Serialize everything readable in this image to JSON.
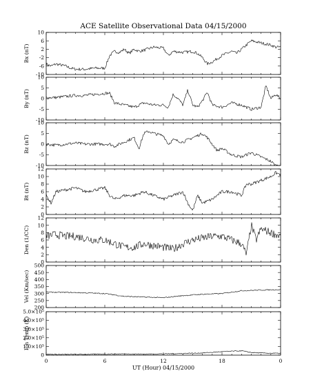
{
  "chart_data": {
    "type": "line",
    "title": "ACE Satellite Observational Data   04/15/2000",
    "xlabel": "UT (Hour)   04/15/2000",
    "x_ticks": [
      "0",
      "6",
      "12",
      "18",
      "0"
    ],
    "xlim": [
      0,
      24
    ],
    "grid": false,
    "panels": [
      {
        "ylabel": "Bx (nT)",
        "ylim": [
          -10,
          10
        ],
        "yticks": [
          -10,
          -6,
          -2,
          2,
          6,
          10
        ],
        "ytick_labels": [
          "-10",
          "-6",
          "-2",
          "2",
          "6",
          "10"
        ],
        "x": [
          0,
          0.5,
          1,
          1.5,
          2,
          2.5,
          3,
          4,
          5,
          6,
          6.5,
          7,
          7.5,
          8,
          8.5,
          9,
          9.5,
          10,
          11,
          12,
          12.5,
          13,
          14,
          15,
          15.5,
          16,
          16.5,
          17,
          18,
          19,
          19.5,
          20,
          20.5,
          21,
          22,
          22.5,
          23,
          23.5,
          24
        ],
        "values": [
          -5,
          -6,
          -5,
          -5.5,
          -6,
          -7,
          -7.5,
          -7.5,
          -7,
          -7,
          -1,
          1,
          0.5,
          2,
          0,
          2,
          1,
          1.5,
          3,
          2.5,
          -1,
          1,
          0.5,
          1,
          0,
          -2,
          -5,
          -4,
          -1,
          1,
          0,
          2,
          4,
          6,
          5,
          4.5,
          4,
          3,
          3
        ]
      },
      {
        "ylabel": "By (nT)",
        "ylim": [
          -10,
          10
        ],
        "yticks": [
          -10,
          -5,
          0,
          5,
          10
        ],
        "ytick_labels": [
          "-10",
          "-5",
          "0",
          "5",
          "10"
        ],
        "x": [
          0,
          1,
          2,
          3,
          4,
          5,
          6,
          6.5,
          7,
          8,
          9,
          10,
          11,
          12,
          12.5,
          13,
          13.5,
          14,
          14.5,
          15,
          15.5,
          16,
          16.5,
          17,
          18,
          19,
          20,
          21,
          22,
          22.5,
          23,
          23.5,
          24
        ],
        "values": [
          0.5,
          0.5,
          1,
          1.5,
          1.5,
          2,
          2.5,
          2.5,
          -2,
          -3,
          -4,
          -2,
          -3,
          -3,
          -4,
          2,
          0,
          -3,
          4,
          -3,
          -4,
          -1,
          3,
          -3,
          -4,
          -2,
          -3,
          -5,
          -4,
          6,
          0,
          2,
          0
        ]
      },
      {
        "ylabel": "Bz (nT)",
        "ylim": [
          -10,
          10
        ],
        "yticks": [
          -10,
          -5,
          0,
          5,
          10
        ],
        "ytick_labels": [
          "-10",
          "-5",
          "0",
          "5",
          "10"
        ],
        "x": [
          0,
          1,
          2,
          3,
          4,
          5,
          6,
          6.5,
          7,
          8,
          9,
          9.5,
          10,
          10.5,
          11,
          12,
          12.5,
          13,
          14,
          15,
          16,
          16.5,
          17,
          17.5,
          18,
          19,
          20,
          21,
          22,
          23,
          23.5,
          24
        ],
        "values": [
          0,
          -0.5,
          0,
          0.5,
          0,
          0,
          0,
          0,
          -1,
          1,
          3,
          -2,
          5,
          6,
          5,
          4,
          0,
          2,
          1,
          3,
          5,
          3,
          0,
          -3,
          -2,
          -5,
          -6,
          -4,
          -6,
          -8,
          -10,
          -10
        ]
      },
      {
        "ylabel": "Bt (nT)",
        "ylim": [
          0,
          12
        ],
        "yticks": [
          0,
          2,
          4,
          6,
          8,
          10,
          12
        ],
        "ytick_labels": [
          "0",
          "2",
          "4",
          "6",
          "8",
          "10",
          "12"
        ],
        "x": [
          0,
          0.5,
          1,
          2,
          3,
          4,
          5,
          6,
          6.5,
          7,
          8,
          9,
          10,
          11,
          12,
          13,
          14,
          14.5,
          15,
          15.5,
          16,
          17,
          18,
          19,
          20,
          20.5,
          21,
          22,
          23,
          23.5,
          24
        ],
        "values": [
          5,
          3,
          6,
          6.5,
          7,
          6,
          6.5,
          7,
          5,
          4,
          5,
          5,
          6,
          5,
          4,
          5,
          6,
          3,
          1,
          5,
          3,
          4,
          6,
          6,
          5,
          8,
          8,
          9,
          10,
          11,
          10.5
        ]
      },
      {
        "ylabel": "Den (1/CC)",
        "ylim": [
          0,
          12
        ],
        "yticks": [
          0,
          2,
          4,
          6,
          8,
          10,
          12
        ],
        "ytick_labels": [
          "0",
          "2",
          "4",
          "6",
          "8",
          "10",
          "12"
        ],
        "x": [
          0,
          1,
          2,
          3,
          4,
          5,
          6,
          7,
          8,
          9,
          10,
          11,
          12,
          13,
          14,
          15,
          16,
          17,
          18,
          19,
          20,
          20.5,
          21,
          21.5,
          22,
          23,
          24
        ],
        "values": [
          7,
          7.5,
          7,
          7,
          6.5,
          6,
          6,
          5,
          4,
          4,
          5,
          4.5,
          4,
          3.5,
          5,
          6,
          6.5,
          7,
          7,
          6,
          5,
          2,
          10,
          6,
          9,
          8,
          7
        ]
      },
      {
        "ylabel": "Vel (Km/sec)",
        "ylim": [
          200,
          500
        ],
        "yticks": [
          200,
          250,
          300,
          350,
          400,
          450,
          500
        ],
        "ytick_labels": [
          "200",
          "250",
          "300",
          "350",
          "400",
          "450",
          "500"
        ],
        "x": [
          0,
          2,
          4,
          6,
          8,
          10,
          12,
          14,
          16,
          18,
          20,
          22,
          24
        ],
        "values": [
          310,
          308,
          305,
          300,
          280,
          275,
          270,
          285,
          295,
          300,
          320,
          325,
          328
        ]
      },
      {
        "ylabel": "Ion Temp (K)",
        "ylim": [
          0,
          500000
        ],
        "yticks": [
          0,
          100000,
          200000,
          300000,
          400000,
          500000
        ],
        "ytick_labels": [
          "0",
          "1.0×10⁵",
          "2.0×10⁵",
          "3.0×10⁵",
          "4.0×10⁵",
          "5.0×10⁵"
        ],
        "x": [
          0,
          2,
          4,
          6,
          8,
          10,
          12,
          14,
          16,
          18,
          19,
          20,
          21,
          22,
          24
        ],
        "values": [
          10000,
          8000,
          10000,
          12000,
          15000,
          12000,
          15000,
          20000,
          25000,
          40000,
          45000,
          50000,
          30000,
          25000,
          20000
        ]
      }
    ]
  }
}
